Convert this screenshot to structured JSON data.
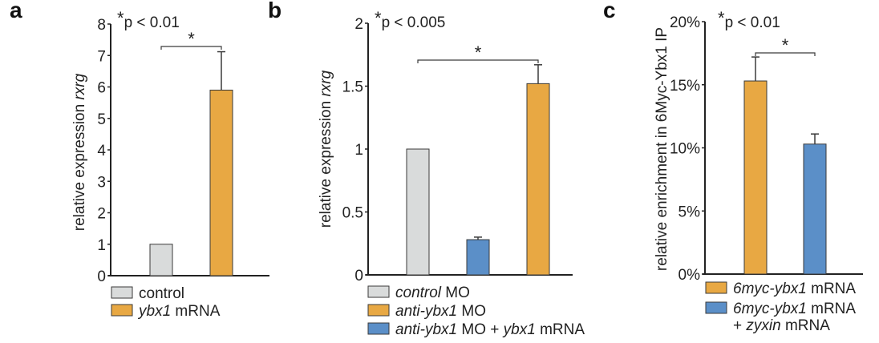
{
  "colors": {
    "gray": "#d9dbdb",
    "orange": "#e8a843",
    "blue": "#5b8fc8",
    "stroke": "#3a3a3a"
  },
  "chart_data": [
    {
      "type": "bar",
      "panel_label": "a",
      "title": "",
      "significance": "p < 0.01",
      "ylabel": [
        {
          "t": "relative expression "
        },
        {
          "t": "rxrg",
          "i": true
        }
      ],
      "ylim": [
        0,
        8
      ],
      "yticks": [
        "0",
        "1",
        "2",
        "3",
        "4",
        "5",
        "6",
        "7",
        "8"
      ],
      "ytick_values": [
        0,
        1,
        2,
        3,
        4,
        5,
        6,
        7,
        8
      ],
      "bars": [
        {
          "color": "gray",
          "value": 1.0,
          "error": null
        },
        {
          "color": "orange",
          "value": 5.9,
          "error": 1.22
        }
      ],
      "bracket": {
        "from": 0,
        "to": 1,
        "label": "*"
      },
      "legend": [
        {
          "color": "gray",
          "lines": [
            [
              {
                "t": "control"
              }
            ]
          ]
        },
        {
          "color": "orange",
          "lines": [
            [
              {
                "t": "ybx1",
                "i": true
              },
              {
                "t": " mRNA"
              }
            ]
          ]
        }
      ]
    },
    {
      "type": "bar",
      "panel_label": "b",
      "significance": "p < 0.005",
      "ylabel": [
        {
          "t": "relative expression "
        },
        {
          "t": "rxrg",
          "i": true
        }
      ],
      "ylim": [
        0,
        2
      ],
      "yticks": [
        "0",
        "0.5",
        "1",
        "1.5",
        "2"
      ],
      "ytick_values": [
        0,
        0.5,
        1,
        1.5,
        2
      ],
      "bars": [
        {
          "color": "gray",
          "value": 1.0,
          "error": null
        },
        {
          "color": "blue",
          "value": 0.28,
          "error": 0.02
        },
        {
          "color": "orange",
          "value": 1.52,
          "error": 0.15
        }
      ],
      "bracket": {
        "from": 0,
        "to": 2,
        "label": "*"
      },
      "legend": [
        {
          "color": "gray",
          "lines": [
            [
              {
                "t": "control",
                "i": true
              },
              {
                "t": " MO"
              }
            ]
          ]
        },
        {
          "color": "orange",
          "lines": [
            [
              {
                "t": "anti-ybx1",
                "i": true
              },
              {
                "t": " MO"
              }
            ]
          ]
        },
        {
          "color": "blue",
          "lines": [
            [
              {
                "t": "anti-ybx1",
                "i": true
              },
              {
                "t": " MO + "
              },
              {
                "t": "ybx1",
                "i": true
              },
              {
                "t": " mRNA"
              }
            ]
          ]
        }
      ]
    },
    {
      "type": "bar",
      "panel_label": "c",
      "significance": "p < 0.01",
      "ylabel": [
        {
          "t": "relative enrichment in 6Myc-Ybx1 IP"
        }
      ],
      "ylim": [
        0,
        20
      ],
      "yticks": [
        "0%",
        "5%",
        "10%",
        "15%",
        "20%"
      ],
      "ytick_values": [
        0,
        5,
        10,
        15,
        20
      ],
      "bars": [
        {
          "color": "orange",
          "value": 15.3,
          "error": 1.9
        },
        {
          "color": "blue",
          "value": 10.3,
          "error": 0.8
        }
      ],
      "bracket": {
        "from": 0,
        "to": 1,
        "label": "*"
      },
      "legend": [
        {
          "color": "orange",
          "lines": [
            [
              {
                "t": "6myc-ybx1",
                "i": true
              },
              {
                "t": " mRNA"
              }
            ]
          ]
        },
        {
          "color": "blue",
          "lines": [
            [
              {
                "t": "6myc-ybx1",
                "i": true
              },
              {
                "t": " mRNA"
              }
            ],
            [
              {
                "t": "+ "
              },
              {
                "t": "zyxin",
                "i": true
              },
              {
                "t": " mRNA"
              }
            ]
          ]
        }
      ]
    }
  ]
}
